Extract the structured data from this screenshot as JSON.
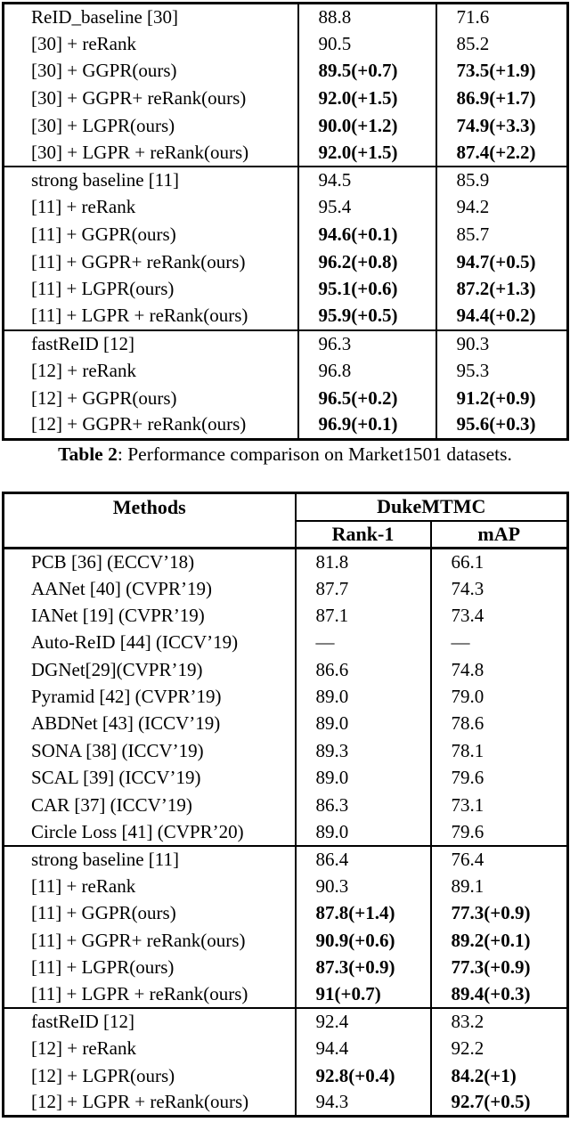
{
  "colors": {
    "background": "#ffffff",
    "text": "#000000",
    "border": "#000000"
  },
  "caption": {
    "label": "Table 2",
    "text": ": Performance comparison on Market1501 datasets."
  },
  "table1": {
    "sections": [
      {
        "rows": [
          {
            "method": "ReID_baseline [30]",
            "rank1": {
              "v": "88.8",
              "b": false
            },
            "map": {
              "v": "71.6",
              "b": false
            }
          },
          {
            "method": "[30] + reRank",
            "rank1": {
              "v": "90.5",
              "b": false
            },
            "map": {
              "v": "85.2",
              "b": false
            }
          },
          {
            "method": "[30] + GGPR(ours)",
            "rank1": {
              "v": "89.5(+0.7)",
              "b": true
            },
            "map": {
              "v": "73.5(+1.9)",
              "b": true
            }
          },
          {
            "method": "[30] + GGPR+ reRank(ours)",
            "rank1": {
              "v": "92.0(+1.5)",
              "b": true
            },
            "map": {
              "v": "86.9(+1.7)",
              "b": true
            }
          },
          {
            "method": "[30] + LGPR(ours)",
            "rank1": {
              "v": "90.0(+1.2)",
              "b": true
            },
            "map": {
              "v": "74.9(+3.3)",
              "b": true
            }
          },
          {
            "method": "[30] + LGPR + reRank(ours)",
            "rank1": {
              "v": "92.0(+1.5)",
              "b": true
            },
            "map": {
              "v": "87.4(+2.2)",
              "b": true
            }
          }
        ]
      },
      {
        "rows": [
          {
            "method": "strong baseline [11]",
            "rank1": {
              "v": "94.5",
              "b": false
            },
            "map": {
              "v": "85.9",
              "b": false
            }
          },
          {
            "method": "[11] + reRank",
            "rank1": {
              "v": "95.4",
              "b": false
            },
            "map": {
              "v": "94.2",
              "b": false
            }
          },
          {
            "method": "[11] + GGPR(ours)",
            "rank1": {
              "v": "94.6(+0.1)",
              "b": true
            },
            "map": {
              "v": "85.7",
              "b": false
            }
          },
          {
            "method": "[11] + GGPR+ reRank(ours)",
            "rank1": {
              "v": "96.2(+0.8)",
              "b": true
            },
            "map": {
              "v": "94.7(+0.5)",
              "b": true
            }
          },
          {
            "method": "[11] + LGPR(ours)",
            "rank1": {
              "v": "95.1(+0.6)",
              "b": true
            },
            "map": {
              "v": "87.2(+1.3)",
              "b": true
            }
          },
          {
            "method": "[11] + LGPR + reRank(ours)",
            "rank1": {
              "v": "95.9(+0.5)",
              "b": true
            },
            "map": {
              "v": "94.4(+0.2)",
              "b": true
            }
          }
        ]
      },
      {
        "rows": [
          {
            "method": "fastReID [12]",
            "rank1": {
              "v": "96.3",
              "b": false
            },
            "map": {
              "v": "90.3",
              "b": false
            }
          },
          {
            "method": "[12] + reRank",
            "rank1": {
              "v": "96.8",
              "b": false
            },
            "map": {
              "v": "95.3",
              "b": false
            }
          },
          {
            "method": "[12] + GGPR(ours)",
            "rank1": {
              "v": "96.5(+0.2)",
              "b": true
            },
            "map": {
              "v": "91.2(+0.9)",
              "b": true
            }
          },
          {
            "method": "[12] + GGPR+ reRank(ours)",
            "rank1": {
              "v": "96.9(+0.1)",
              "b": true
            },
            "map": {
              "v": "95.6(+0.3)",
              "b": true
            }
          }
        ]
      }
    ]
  },
  "table2": {
    "header": {
      "methods": "Methods",
      "dataset": "DukeMTMC",
      "rank1": "Rank-1",
      "map": "mAP"
    },
    "sections": [
      {
        "rows": [
          {
            "method": "PCB [36] (ECCV’18)",
            "rank1": {
              "v": "81.8",
              "b": false
            },
            "map": {
              "v": "66.1",
              "b": false
            }
          },
          {
            "method": "AANet [40] (CVPR’19)",
            "rank1": {
              "v": "87.7",
              "b": false
            },
            "map": {
              "v": "74.3",
              "b": false
            }
          },
          {
            "method": "IANet [19] (CVPR’19)",
            "rank1": {
              "v": "87.1",
              "b": false
            },
            "map": {
              "v": "73.4",
              "b": false
            }
          },
          {
            "method": "Auto-ReID [44] (ICCV’19)",
            "rank1": {
              "v": "—",
              "b": false
            },
            "map": {
              "v": "—",
              "b": false
            }
          },
          {
            "method": "DGNet[29](CVPR’19)",
            "rank1": {
              "v": "86.6",
              "b": false
            },
            "map": {
              "v": "74.8",
              "b": false
            }
          },
          {
            "method": "Pyramid [42] (CVPR’19)",
            "rank1": {
              "v": "89.0",
              "b": false
            },
            "map": {
              "v": "79.0",
              "b": false
            }
          },
          {
            "method": "ABDNet [43] (ICCV’19)",
            "rank1": {
              "v": "89.0",
              "b": false
            },
            "map": {
              "v": "78.6",
              "b": false
            }
          },
          {
            "method": "SONA [38] (ICCV’19)",
            "rank1": {
              "v": "89.3",
              "b": false
            },
            "map": {
              "v": "78.1",
              "b": false
            }
          },
          {
            "method": "SCAL [39] (ICCV’19)",
            "rank1": {
              "v": "89.0",
              "b": false
            },
            "map": {
              "v": "79.6",
              "b": false
            }
          },
          {
            "method": "CAR [37] (ICCV’19)",
            "rank1": {
              "v": "86.3",
              "b": false
            },
            "map": {
              "v": "73.1",
              "b": false
            }
          },
          {
            "method": "Circle Loss [41] (CVPR’20)",
            "rank1": {
              "v": "89.0",
              "b": false
            },
            "map": {
              "v": "79.6",
              "b": false
            }
          }
        ]
      },
      {
        "rows": [
          {
            "method": "strong baseline [11]",
            "rank1": {
              "v": "86.4",
              "b": false
            },
            "map": {
              "v": "76.4",
              "b": false
            }
          },
          {
            "method": "[11] + reRank",
            "rank1": {
              "v": "90.3",
              "b": false
            },
            "map": {
              "v": "89.1",
              "b": false
            }
          },
          {
            "method": "[11] + GGPR(ours)",
            "rank1": {
              "v": "87.8(+1.4)",
              "b": true
            },
            "map": {
              "v": "77.3(+0.9)",
              "b": true
            }
          },
          {
            "method": "[11] + GGPR+ reRank(ours)",
            "rank1": {
              "v": "90.9(+0.6)",
              "b": true
            },
            "map": {
              "v": "89.2(+0.1)",
              "b": true
            }
          },
          {
            "method": "[11] + LGPR(ours)",
            "rank1": {
              "v": "87.3(+0.9)",
              "b": true
            },
            "map": {
              "v": "77.3(+0.9)",
              "b": true
            }
          },
          {
            "method": "[11] + LGPR + reRank(ours)",
            "rank1": {
              "v": "91(+0.7)",
              "b": true
            },
            "map": {
              "v": "89.4(+0.3)",
              "b": true
            }
          }
        ]
      },
      {
        "rows": [
          {
            "method": "fastReID [12]",
            "rank1": {
              "v": "92.4",
              "b": false
            },
            "map": {
              "v": "83.2",
              "b": false
            }
          },
          {
            "method": "[12] + reRank",
            "rank1": {
              "v": "94.4",
              "b": false
            },
            "map": {
              "v": "92.2",
              "b": false
            }
          },
          {
            "method": "[12] + LGPR(ours)",
            "rank1": {
              "v": "92.8(+0.4)",
              "b": true
            },
            "map": {
              "v": "84.2(+1)",
              "b": true
            }
          },
          {
            "method": "[12] + LGPR + reRank(ours)",
            "rank1": {
              "v": "94.3",
              "b": false
            },
            "map": {
              "v": "92.7(+0.5)",
              "b": true
            }
          }
        ]
      }
    ]
  }
}
